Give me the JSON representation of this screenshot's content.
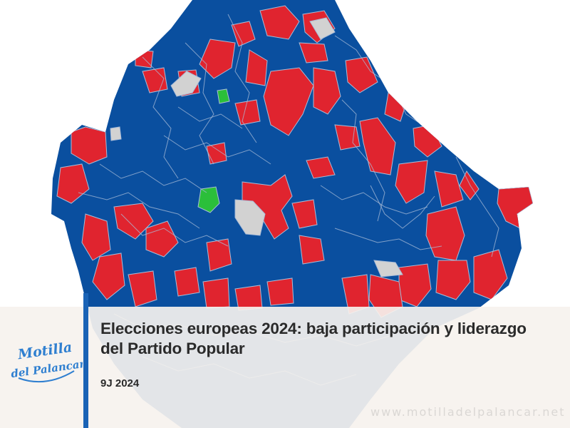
{
  "map": {
    "party_colors": {
      "blue": "#0a4f9f",
      "red": "#e0242f",
      "green": "#2bbf3a",
      "no_data": "#d2d2d2"
    },
    "border_color": "#a9bcd8",
    "background_color": "#ffffff"
  },
  "article": {
    "headline": "Elecciones europeas 2024: baja participación y liderazgo del Partido Popular",
    "date": "9J 2024",
    "accent_color": "#1a63b6"
  },
  "logo": {
    "text": "Motilla del Palancar",
    "color": "#2f7fd0"
  },
  "watermark": "www.motilladelpalancar.net"
}
